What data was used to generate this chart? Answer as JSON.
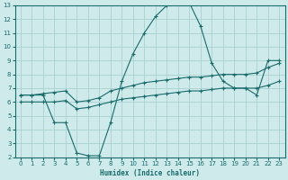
{
  "xlabel": "Humidex (Indice chaleur)",
  "background_color": "#ceeaea",
  "grid_color": "#aed4d4",
  "line_color": "#1a6b6b",
  "xlim": [
    -0.5,
    23.5
  ],
  "ylim": [
    2,
    13
  ],
  "xticks": [
    0,
    1,
    2,
    3,
    4,
    5,
    6,
    7,
    8,
    9,
    10,
    11,
    12,
    13,
    14,
    15,
    16,
    17,
    18,
    19,
    20,
    21,
    22,
    23
  ],
  "yticks": [
    2,
    3,
    4,
    5,
    6,
    7,
    8,
    9,
    10,
    11,
    12,
    13
  ],
  "series": {
    "main": {
      "x": [
        0,
        1,
        2,
        3,
        4,
        5,
        6,
        7,
        8,
        9,
        10,
        11,
        12,
        13,
        14,
        15,
        16,
        17,
        18,
        19,
        20,
        21,
        22,
        23
      ],
      "y": [
        6.5,
        6.5,
        6.5,
        4.5,
        4.5,
        2.3,
        2.1,
        2.1,
        4.5,
        7.5,
        9.5,
        11.0,
        12.2,
        13.0,
        13.2,
        13.2,
        11.5,
        8.8,
        7.5,
        7.0,
        7.0,
        6.5,
        9.0,
        9.0
      ]
    },
    "upper": {
      "x": [
        0,
        1,
        2,
        3,
        4,
        5,
        6,
        7,
        8,
        9,
        10,
        11,
        12,
        13,
        14,
        15,
        16,
        17,
        18,
        19,
        20,
        21,
        22,
        23
      ],
      "y": [
        6.5,
        6.5,
        6.6,
        6.7,
        6.8,
        6.0,
        6.1,
        6.3,
        6.8,
        7.0,
        7.2,
        7.4,
        7.5,
        7.6,
        7.7,
        7.8,
        7.8,
        7.9,
        8.0,
        8.0,
        8.0,
        8.1,
        8.5,
        8.8
      ]
    },
    "lower": {
      "x": [
        0,
        1,
        2,
        3,
        4,
        5,
        6,
        7,
        8,
        9,
        10,
        11,
        12,
        13,
        14,
        15,
        16,
        17,
        18,
        19,
        20,
        21,
        22,
        23
      ],
      "y": [
        6.0,
        6.0,
        6.0,
        6.0,
        6.1,
        5.5,
        5.6,
        5.8,
        6.0,
        6.2,
        6.3,
        6.4,
        6.5,
        6.6,
        6.7,
        6.8,
        6.8,
        6.9,
        7.0,
        7.0,
        7.0,
        7.0,
        7.2,
        7.5
      ]
    }
  }
}
